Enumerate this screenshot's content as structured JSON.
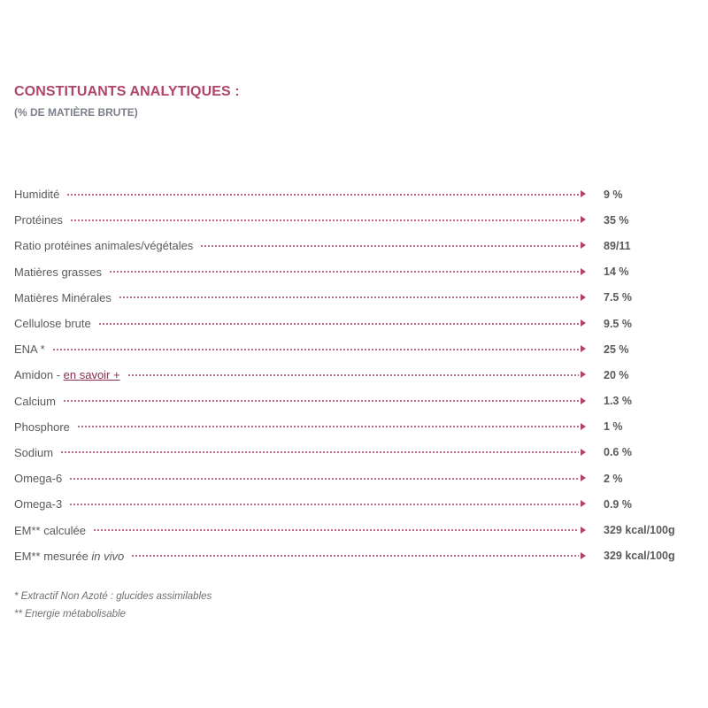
{
  "heading": {
    "title": "CONSTITUANTS ANALYTIQUES :",
    "subtitle": "(% DE MATIÈRE BRUTE)"
  },
  "rows": [
    {
      "label": "Humidité",
      "value": "9 %"
    },
    {
      "label": "Protéines",
      "value": "35 %"
    },
    {
      "label": "Ratio protéines animales/végétales",
      "value": "89/11"
    },
    {
      "label": "Matières grasses",
      "value": "14 %"
    },
    {
      "label": "Matières Minérales",
      "value": "7.5 %"
    },
    {
      "label": "Cellulose brute",
      "value": "9.5 %"
    },
    {
      "label": "ENA *",
      "value": "25 %"
    },
    {
      "label": "Amidon - ",
      "link": "en savoir +",
      "value": "20 %"
    },
    {
      "label": "Calcium",
      "value": "1.3 %"
    },
    {
      "label": "Phosphore",
      "value": "1 %"
    },
    {
      "label": "Sodium",
      "value": "0.6 %"
    },
    {
      "label": "Omega-6",
      "value": "2 %"
    },
    {
      "label": "Omega-3",
      "value": "0.9 %"
    },
    {
      "label": "EM** calculée",
      "value": "329 kcal/100g"
    },
    {
      "label": "EM** mesurée ",
      "italic": "in vivo",
      "value": "329 kcal/100g"
    }
  ],
  "footnotes": [
    "* Extractif Non Azoté : glucides assimilables",
    "** Energie métabolisable"
  ],
  "colors": {
    "accent": "#b0436a",
    "subtitle": "#7a7f8a",
    "text": "#5a5a5a"
  }
}
